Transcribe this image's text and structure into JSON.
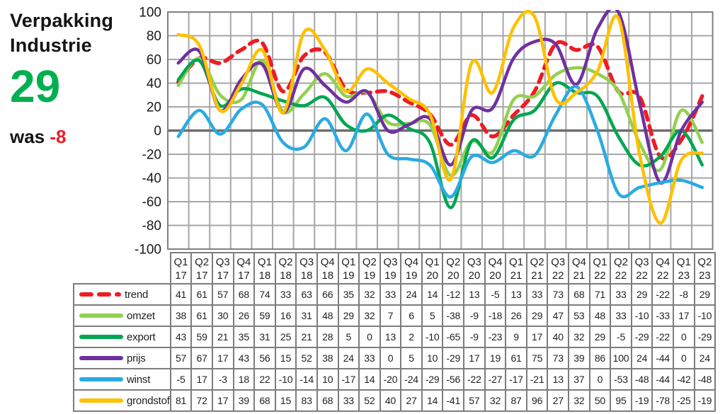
{
  "header": {
    "title_line1": "Verpakking",
    "title_line2": "Industrie",
    "score": "29",
    "was_label": "was",
    "was_value": "-8"
  },
  "colors": {
    "score_green": "#00B050",
    "was_red": "#ED1C24",
    "grid": "#A6A6A6",
    "zero_line": "#6E6E6E",
    "plot_border": "#808080",
    "text": "#1A1A1A"
  },
  "chart_data": {
    "type": "line",
    "title": "",
    "xlabel": "",
    "ylabel": "",
    "smooth": true,
    "grid": true,
    "legend_position": "table-rows-left",
    "ylim": [
      -100,
      100
    ],
    "ytick_labels": [
      100,
      80,
      60,
      40,
      20,
      0,
      -20,
      -40,
      -60,
      -80,
      -100
    ],
    "categories": [
      {
        "q": "Q1",
        "yr": "17"
      },
      {
        "q": "Q2",
        "yr": "17"
      },
      {
        "q": "Q3",
        "yr": "17"
      },
      {
        "q": "Q4",
        "yr": "17"
      },
      {
        "q": "Q1",
        "yr": "18"
      },
      {
        "q": "Q2",
        "yr": "18"
      },
      {
        "q": "Q3",
        "yr": "18"
      },
      {
        "q": "Q4",
        "yr": "18"
      },
      {
        "q": "Q1",
        "yr": "19"
      },
      {
        "q": "Q2",
        "yr": "19"
      },
      {
        "q": "Q3",
        "yr": "19"
      },
      {
        "q": "Q4",
        "yr": "19"
      },
      {
        "q": "Q1",
        "yr": "20"
      },
      {
        "q": "Q2",
        "yr": "20"
      },
      {
        "q": "Q3",
        "yr": "20"
      },
      {
        "q": "Q4",
        "yr": "20"
      },
      {
        "q": "Q1",
        "yr": "21"
      },
      {
        "q": "Q2",
        "yr": "21"
      },
      {
        "q": "Q3",
        "yr": "22"
      },
      {
        "q": "Q4",
        "yr": "21"
      },
      {
        "q": "Q1",
        "yr": "22"
      },
      {
        "q": "Q2",
        "yr": "22"
      },
      {
        "q": "Q3",
        "yr": "22"
      },
      {
        "q": "Q4",
        "yr": "22"
      },
      {
        "q": "Q1",
        "yr": "23"
      },
      {
        "q": "Q2",
        "yr": "23"
      }
    ],
    "series": [
      {
        "name": "trend",
        "color": "#ED1C24",
        "dashed": true,
        "values": [
          41,
          61,
          57,
          68,
          74,
          33,
          63,
          66,
          35,
          32,
          33,
          24,
          14,
          -12,
          13,
          -5,
          13,
          33,
          73,
          68,
          71,
          33,
          29,
          -22,
          -8,
          29
        ]
      },
      {
        "name": "omzet",
        "color": "#92D050",
        "dashed": false,
        "values": [
          38,
          61,
          30,
          26,
          59,
          16,
          31,
          48,
          29,
          32,
          7,
          6,
          5,
          -38,
          -9,
          -18,
          26,
          29,
          47,
          53,
          48,
          33,
          -10,
          -33,
          17,
          -10
        ]
      },
      {
        "name": "export",
        "color": "#00A651",
        "dashed": false,
        "values": [
          43,
          59,
          21,
          35,
          31,
          25,
          21,
          28,
          5,
          0,
          13,
          2,
          -10,
          -65,
          -9,
          -23,
          9,
          17,
          40,
          32,
          29,
          -5,
          -29,
          -22,
          0,
          -29
        ]
      },
      {
        "name": "prijs",
        "color": "#7030A0",
        "dashed": false,
        "values": [
          57,
          67,
          17,
          43,
          56,
          15,
          52,
          38,
          24,
          33,
          0,
          5,
          10,
          -29,
          17,
          19,
          61,
          75,
          73,
          39,
          86,
          100,
          24,
          -44,
          0,
          24
        ]
      },
      {
        "name": "winst",
        "color": "#29ABE2",
        "dashed": false,
        "values": [
          -5,
          17,
          -3,
          18,
          22,
          -10,
          -14,
          10,
          -17,
          14,
          -20,
          -24,
          -29,
          -56,
          -22,
          -27,
          -17,
          -21,
          13,
          37,
          0,
          -53,
          -48,
          -44,
          -42,
          -48
        ]
      },
      {
        "name": "grondstof",
        "color": "#FFC000",
        "dashed": false,
        "values": [
          81,
          72,
          17,
          39,
          68,
          15,
          83,
          68,
          33,
          52,
          40,
          27,
          14,
          -41,
          57,
          32,
          87,
          96,
          27,
          32,
          50,
          95,
          -19,
          -78,
          -25,
          -19
        ]
      }
    ]
  }
}
